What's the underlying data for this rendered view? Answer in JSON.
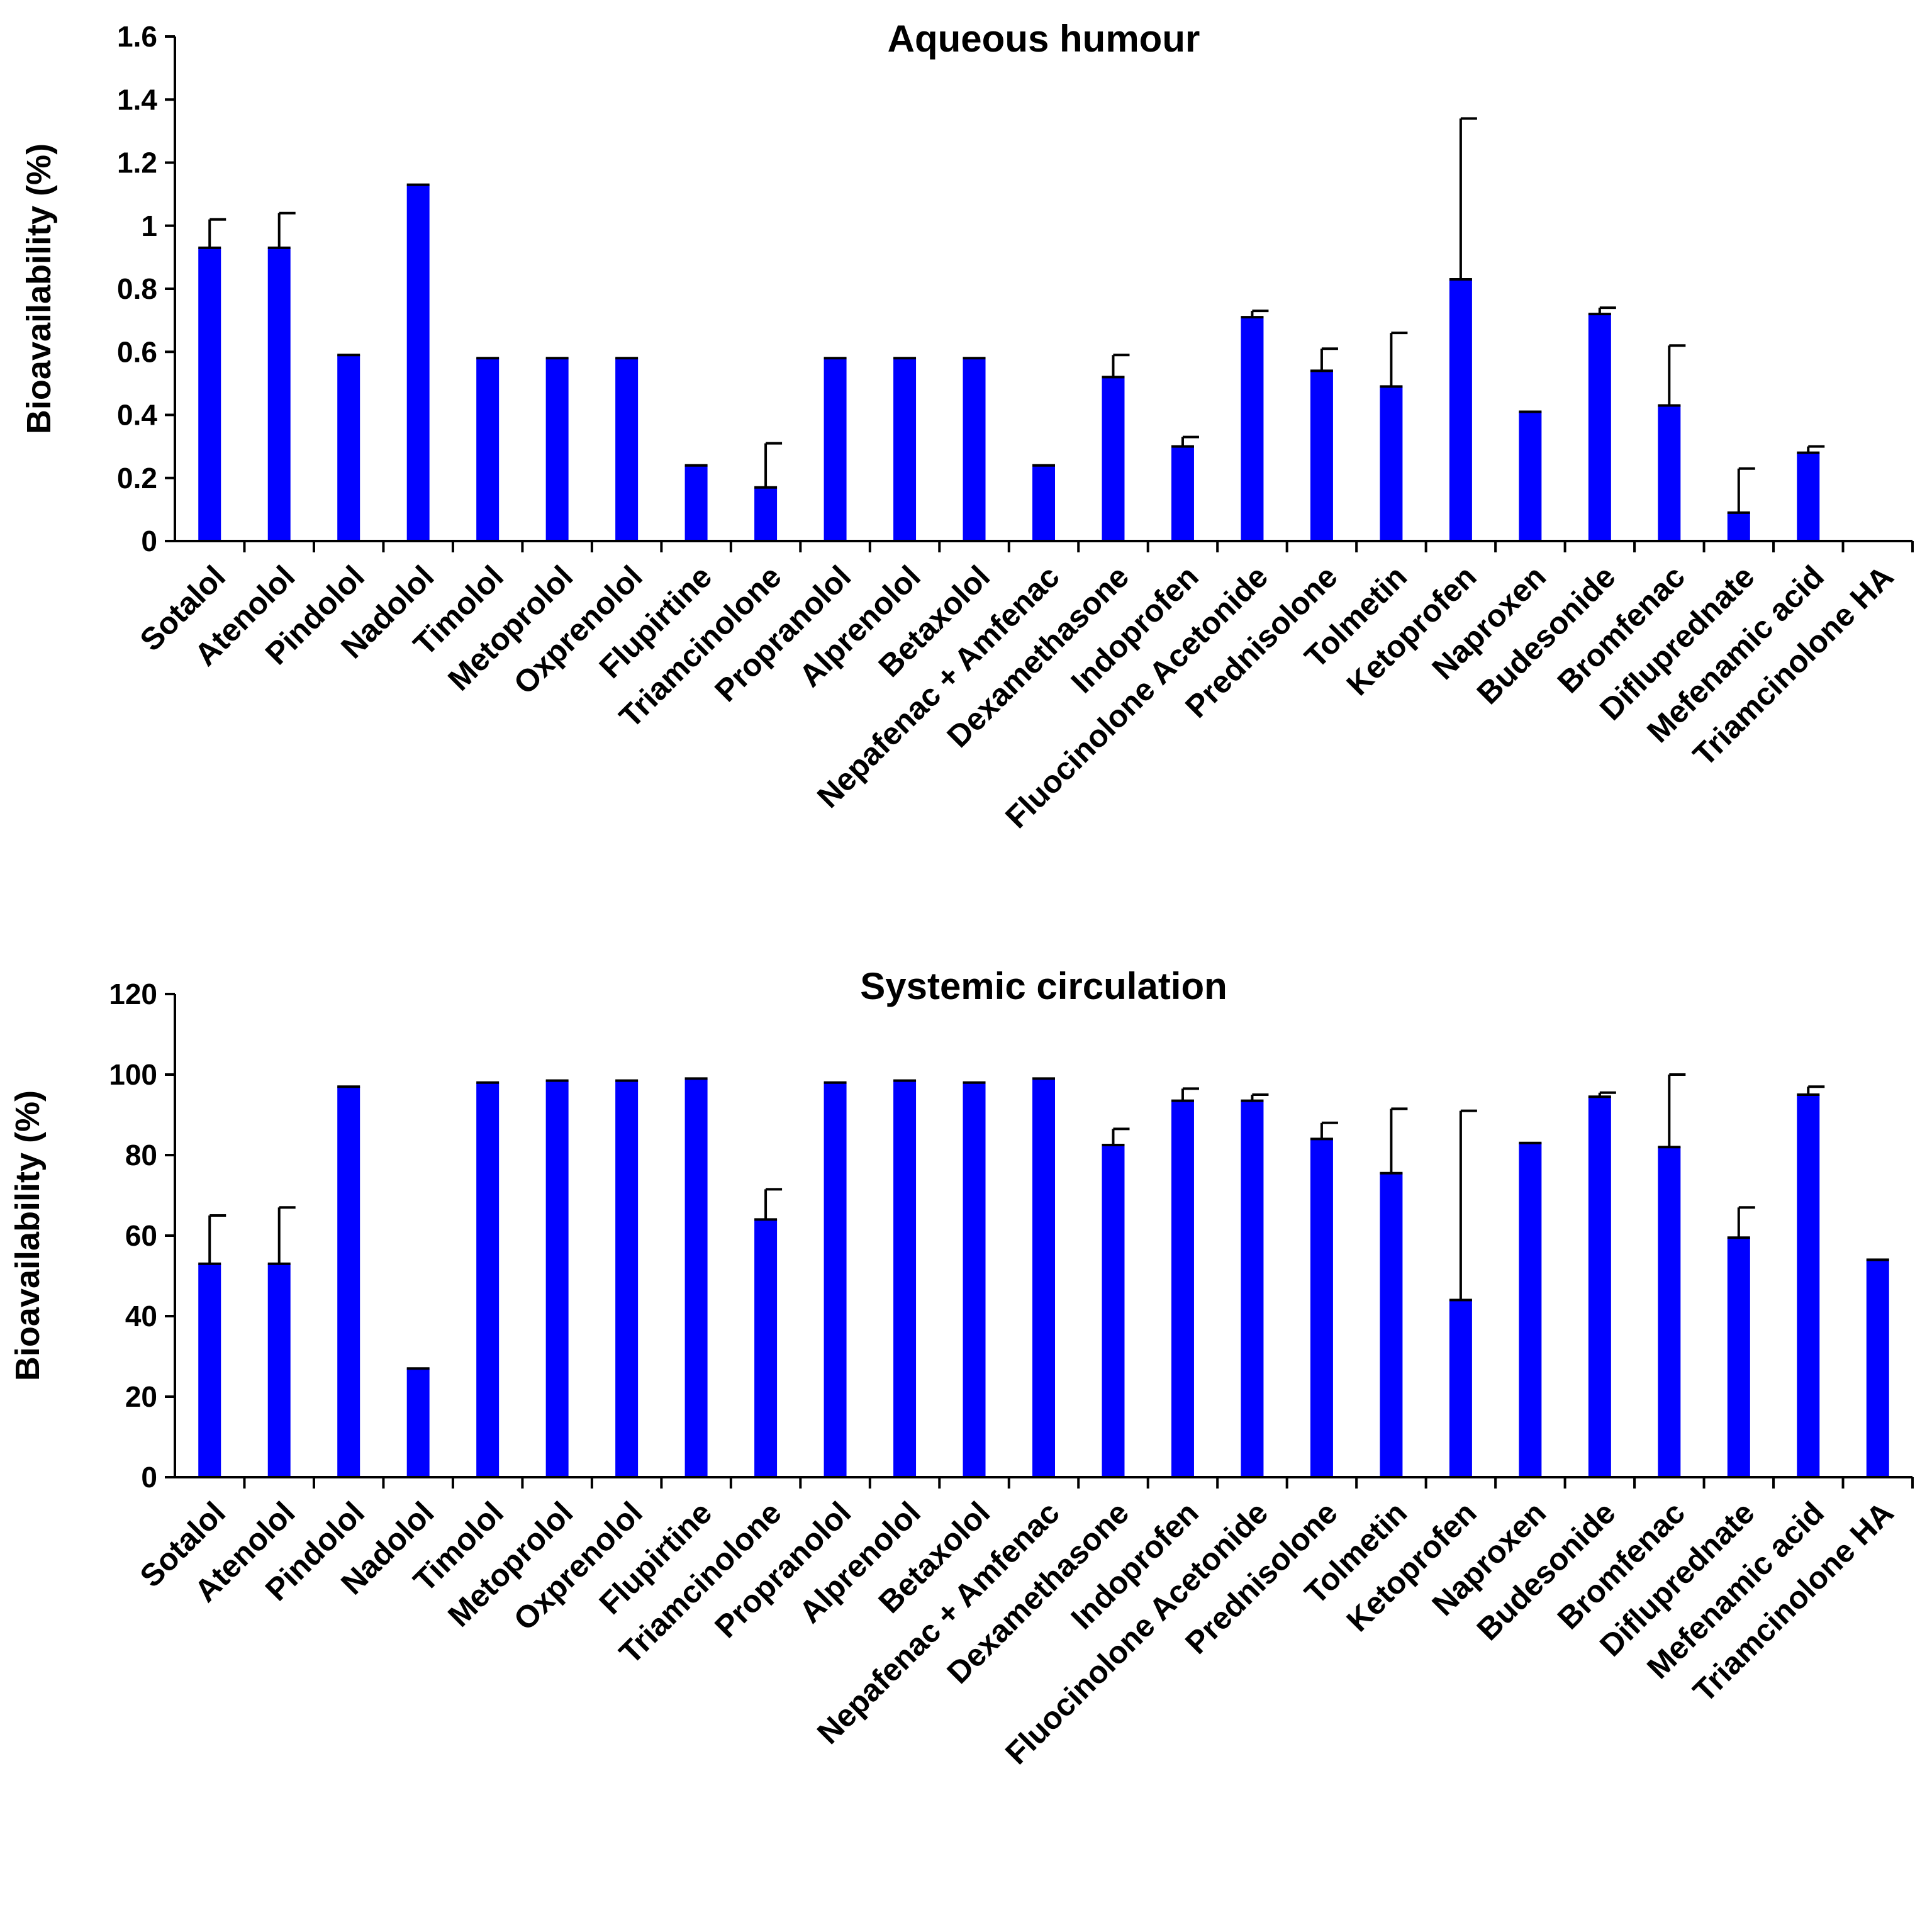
{
  "colors": {
    "bar": "#0000FF",
    "error": "#000000",
    "axis": "#000000"
  },
  "chart_data": [
    {
      "type": "bar",
      "title": "Aqueous humour",
      "xlabel": "",
      "ylabel": "Bioavailability (%)",
      "ylim": [
        0,
        1.6
      ],
      "yticks": [
        0,
        0.2,
        0.4,
        0.6,
        0.8,
        1,
        1.2,
        1.4,
        1.6
      ],
      "ytick_labels": [
        "0",
        "0.2",
        "0.4",
        "0.6",
        "0.8",
        "1",
        "1.2",
        "1.4",
        "1.6"
      ],
      "categories": [
        "Sotalol",
        "Atenolol",
        "Pindolol",
        "Nadolol",
        "Timolol",
        "Metoprolol",
        "Oxprenolol",
        "Flupirtine",
        "Triamcinolone",
        "Propranolol",
        "Alprenolol",
        "Betaxolol",
        "Nepafenac + Amfenac",
        "Dexamethasone",
        "Indoprofen",
        "Fluocinolone Acetonide",
        "Prednisolone",
        "Tolmetin",
        "Ketoprofen",
        "Naproxen",
        "Budesonide",
        "Bromfenac",
        "Difluprednate",
        "Mefenamic acid",
        "Triamcinolone HA"
      ],
      "series": [
        {
          "name": "Aqueous humour",
          "values": [
            0.93,
            0.93,
            0.59,
            1.13,
            0.58,
            0.58,
            0.58,
            0.24,
            0.17,
            0.58,
            0.58,
            0.58,
            0.24,
            0.52,
            0.3,
            0.71,
            0.54,
            0.49,
            0.83,
            0.41,
            0.72,
            0.43,
            0.09,
            0.28,
            0
          ],
          "errors": [
            0.09,
            0.11,
            0.0,
            0.0,
            0.0,
            0.0,
            0.0,
            0.0,
            0.14,
            0.0,
            0.0,
            0.0,
            0.0,
            0.07,
            0.03,
            0.02,
            0.07,
            0.17,
            0.51,
            0.0,
            0.02,
            0.19,
            0.14,
            0.02,
            0
          ]
        }
      ]
    },
    {
      "type": "bar",
      "title": "Systemic circulation",
      "xlabel": "",
      "ylabel": "Bioavailability (%)",
      "ylim": [
        0,
        120
      ],
      "yticks": [
        0,
        20,
        40,
        60,
        80,
        100,
        120
      ],
      "ytick_labels": [
        "0",
        "20",
        "40",
        "60",
        "80",
        "100",
        "120"
      ],
      "categories": [
        "Sotalol",
        "Atenolol",
        "Pindolol",
        "Nadolol",
        "Timolol",
        "Metoprolol",
        "Oxprenolol",
        "Flupirtine",
        "Triamcinolone",
        "Propranolol",
        "Alprenolol",
        "Betaxolol",
        "Nepafenac + Amfenac",
        "Dexamethasone",
        "Indoprofen",
        "Fluocinolone Acetonide",
        "Prednisolone",
        "Tolmetin",
        "Ketoprofen",
        "Naproxen",
        "Budesonide",
        "Bromfenac",
        "Difluprednate",
        "Mefenamic acid",
        "Triamcinolone HA"
      ],
      "series": [
        {
          "name": "Systemic circulation",
          "values": [
            53,
            53,
            97,
            27,
            98,
            98.5,
            98.5,
            99,
            64,
            98,
            98.5,
            98,
            99,
            82.5,
            93.5,
            93.5,
            84,
            75.5,
            44,
            83,
            94.5,
            82,
            59.5,
            95,
            54
          ],
          "errors": [
            12,
            14,
            0,
            0,
            0,
            0,
            0,
            0,
            7.5,
            0,
            0,
            0,
            0,
            4,
            3,
            1.5,
            4,
            16,
            47,
            0,
            1,
            18,
            7.5,
            2,
            0
          ]
        }
      ]
    }
  ]
}
